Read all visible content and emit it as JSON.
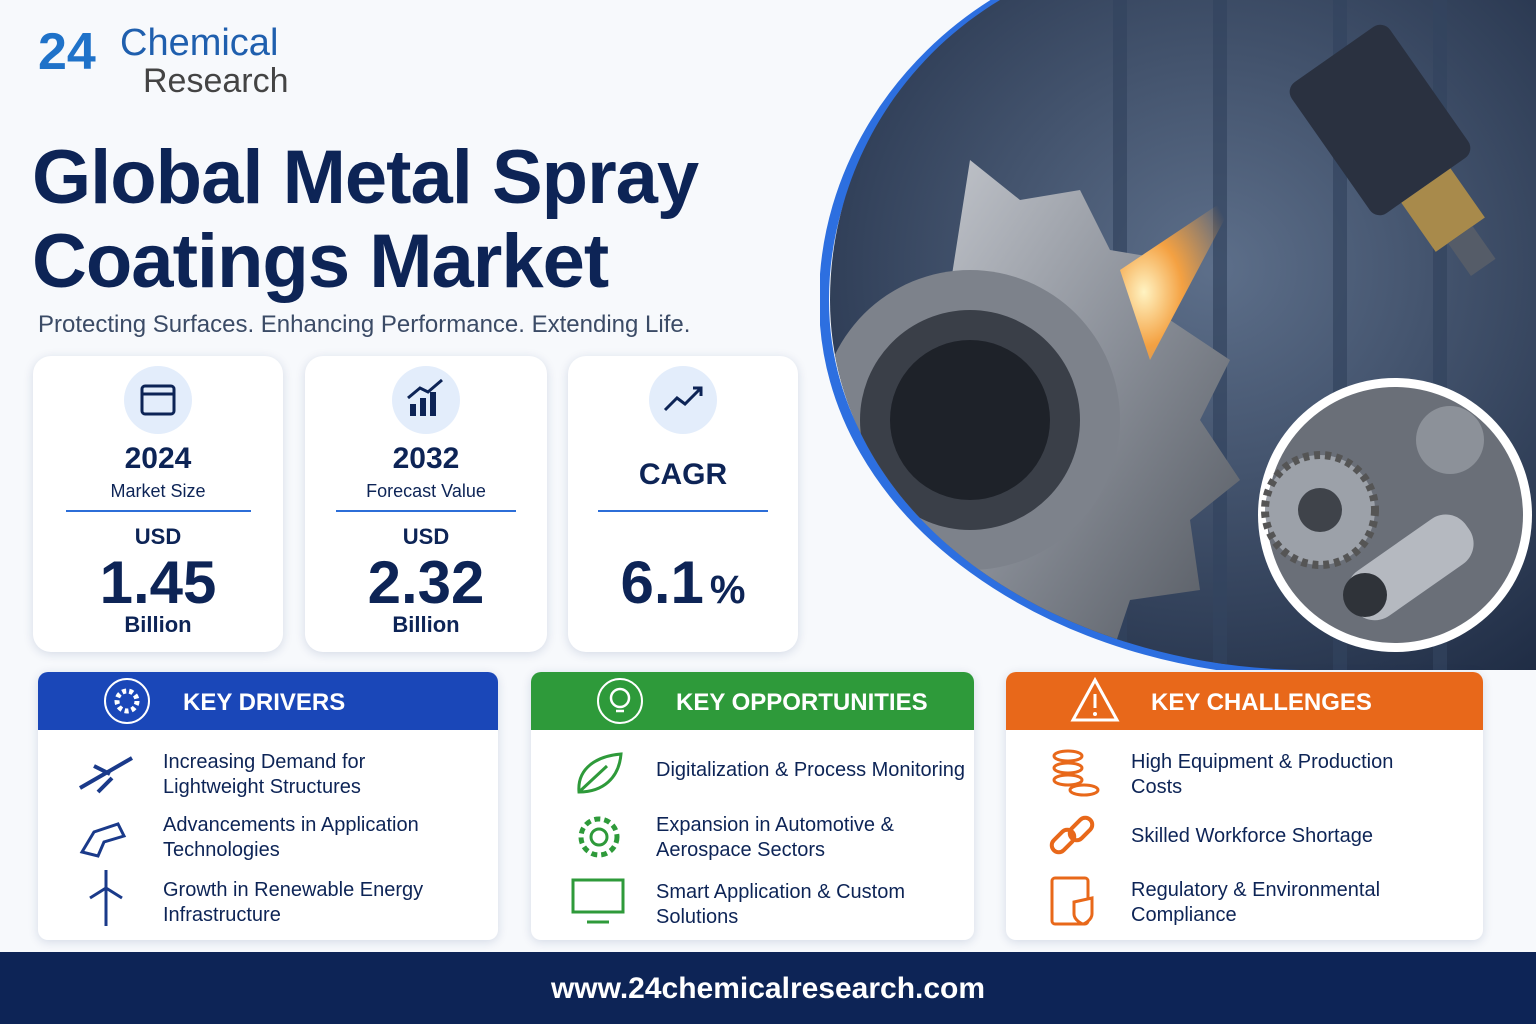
{
  "logo": {
    "number": "24",
    "line1": "Chemical",
    "line2": "Research"
  },
  "title": {
    "line1": "Global Metal Spray",
    "line2": "Coatings Market"
  },
  "subtitle": "Protecting Surfaces. Enhancing Performance. Extending Life.",
  "stats": [
    {
      "heading": 2024,
      "caption": "Market Size",
      "prefix": "USD",
      "value": 1.45,
      "unit": "Billion"
    },
    {
      "heading": 2032,
      "caption": "Forecast Value",
      "prefix": "USD",
      "value": 2.32,
      "unit": "Billion"
    },
    {
      "heading": "CAGR",
      "value": 6.1,
      "unit": "%"
    }
  ],
  "panels": [
    {
      "title": "KEY DRIVERS",
      "items": [
        "Increasing Demand for Lightweight Structures",
        "Advancements in Application Technologies",
        "Growth in Renewable Energy Infrastructure"
      ]
    },
    {
      "title": "KEY OPPORTUNITIES",
      "items": [
        "Digitalization & Process Monitoring",
        "Expansion in Automotive & Aerospace Sectors",
        "Smart Application & Custom Solutions"
      ]
    },
    {
      "title": "KEY CHALLENGES",
      "items": [
        "High Equipment & Production Costs",
        "Skilled Workforce Shortage",
        "Regulatory & Environmental Compliance"
      ]
    }
  ],
  "footer": {
    "url": "www.24chemicalresearch.com"
  }
}
